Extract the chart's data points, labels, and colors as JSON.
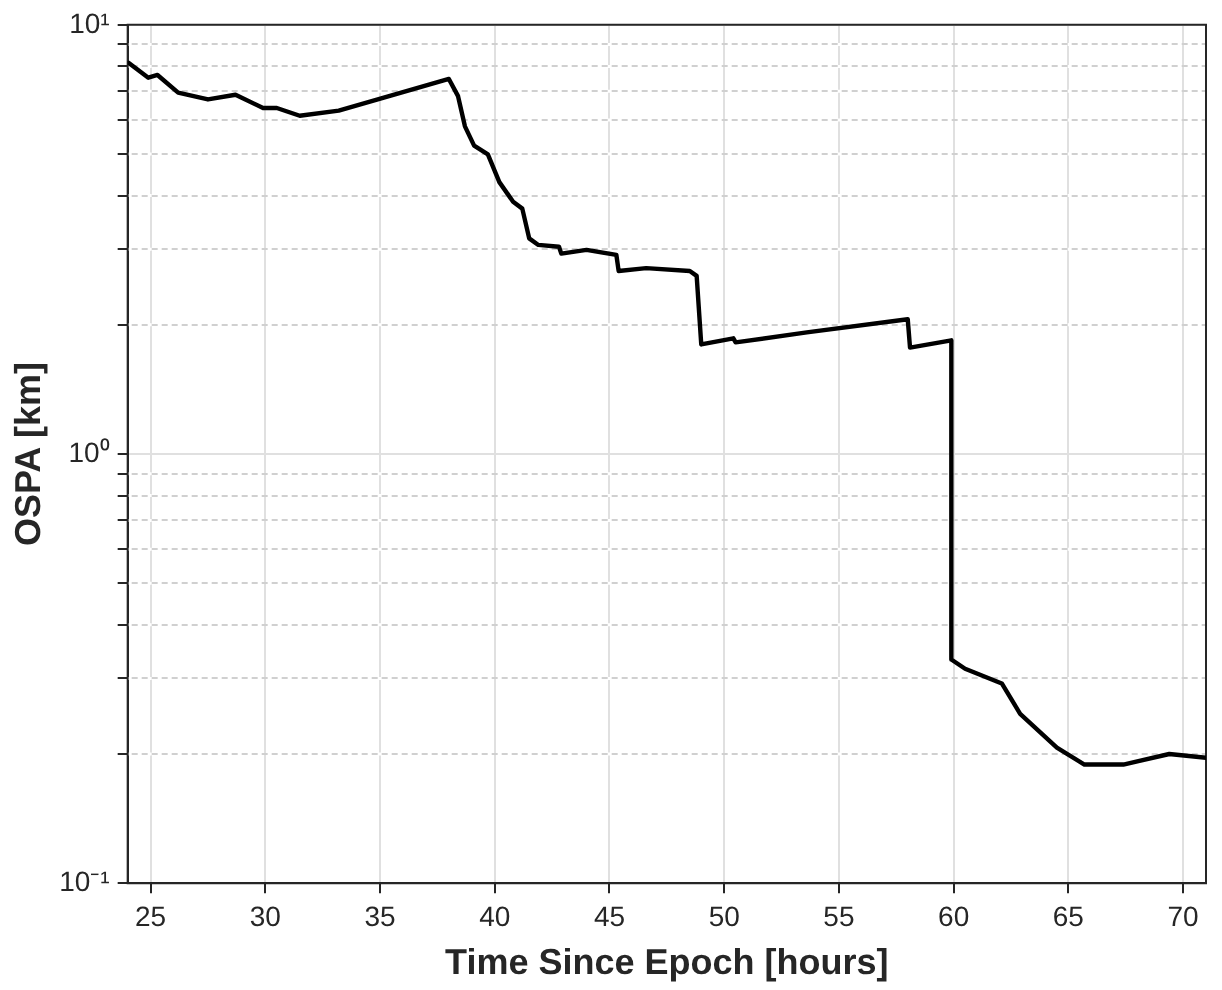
{
  "chart_data": {
    "type": "line",
    "xlabel": "Time Since Epoch [hours]",
    "ylabel": "OSPA [km]",
    "log": "y",
    "grid": true,
    "legend": false,
    "marker": "none",
    "line_style": "solid",
    "xlim": [
      24,
      71
    ],
    "xticks": [
      25,
      30,
      35,
      40,
      45,
      50,
      55,
      60,
      65,
      70
    ],
    "ylim": [
      0.1,
      10
    ],
    "yticks": [
      {
        "value": 0.1,
        "label": "10⁻¹"
      },
      {
        "value": 0.2,
        "label": null
      },
      {
        "value": 0.3,
        "label": null
      },
      {
        "value": 0.4,
        "label": null
      },
      {
        "value": 0.5,
        "label": null
      },
      {
        "value": 0.6,
        "label": null
      },
      {
        "value": 0.7,
        "label": null
      },
      {
        "value": 0.8,
        "label": null
      },
      {
        "value": 0.9,
        "label": null
      },
      {
        "value": 1,
        "label": "10⁰"
      },
      {
        "value": 2,
        "label": null
      },
      {
        "value": 3,
        "label": null
      },
      {
        "value": 4,
        "label": null
      },
      {
        "value": 5,
        "label": null
      },
      {
        "value": 6,
        "label": null
      },
      {
        "value": 7,
        "label": null
      },
      {
        "value": 8,
        "label": null
      },
      {
        "value": 9,
        "label": null
      },
      {
        "value": 10,
        "label": "10¹"
      }
    ],
    "series": [
      {
        "color": "#000000",
        "x": [
          24.05,
          24.9,
          25.3,
          26.2,
          27.5,
          28.7,
          29.9,
          30.5,
          31.5,
          33.2,
          38.0,
          38.4,
          38.7,
          39.1,
          39.7,
          40.2,
          40.8,
          41.2,
          41.5,
          41.9,
          42.8,
          42.9,
          44.0,
          45.3,
          45.4,
          46.6,
          48.5,
          48.8,
          49.0,
          50.4,
          50.5,
          53.6,
          58.0,
          58.1,
          59.9,
          59.9,
          60.5,
          62.1,
          62.9,
          64.5,
          65.7,
          67.4,
          69.4,
          71.0
        ],
        "values": [
          8.15,
          7.53,
          7.64,
          6.95,
          6.7,
          6.87,
          6.4,
          6.4,
          6.14,
          6.31,
          7.48,
          6.82,
          5.8,
          5.23,
          4.99,
          4.3,
          3.87,
          3.73,
          3.18,
          3.07,
          3.04,
          2.93,
          2.99,
          2.91,
          2.67,
          2.71,
          2.67,
          2.6,
          1.8,
          1.86,
          1.82,
          1.92,
          2.06,
          1.77,
          1.84,
          0.332,
          0.316,
          0.292,
          0.248,
          0.207,
          0.189,
          0.189,
          0.2,
          0.196
        ]
      }
    ]
  }
}
